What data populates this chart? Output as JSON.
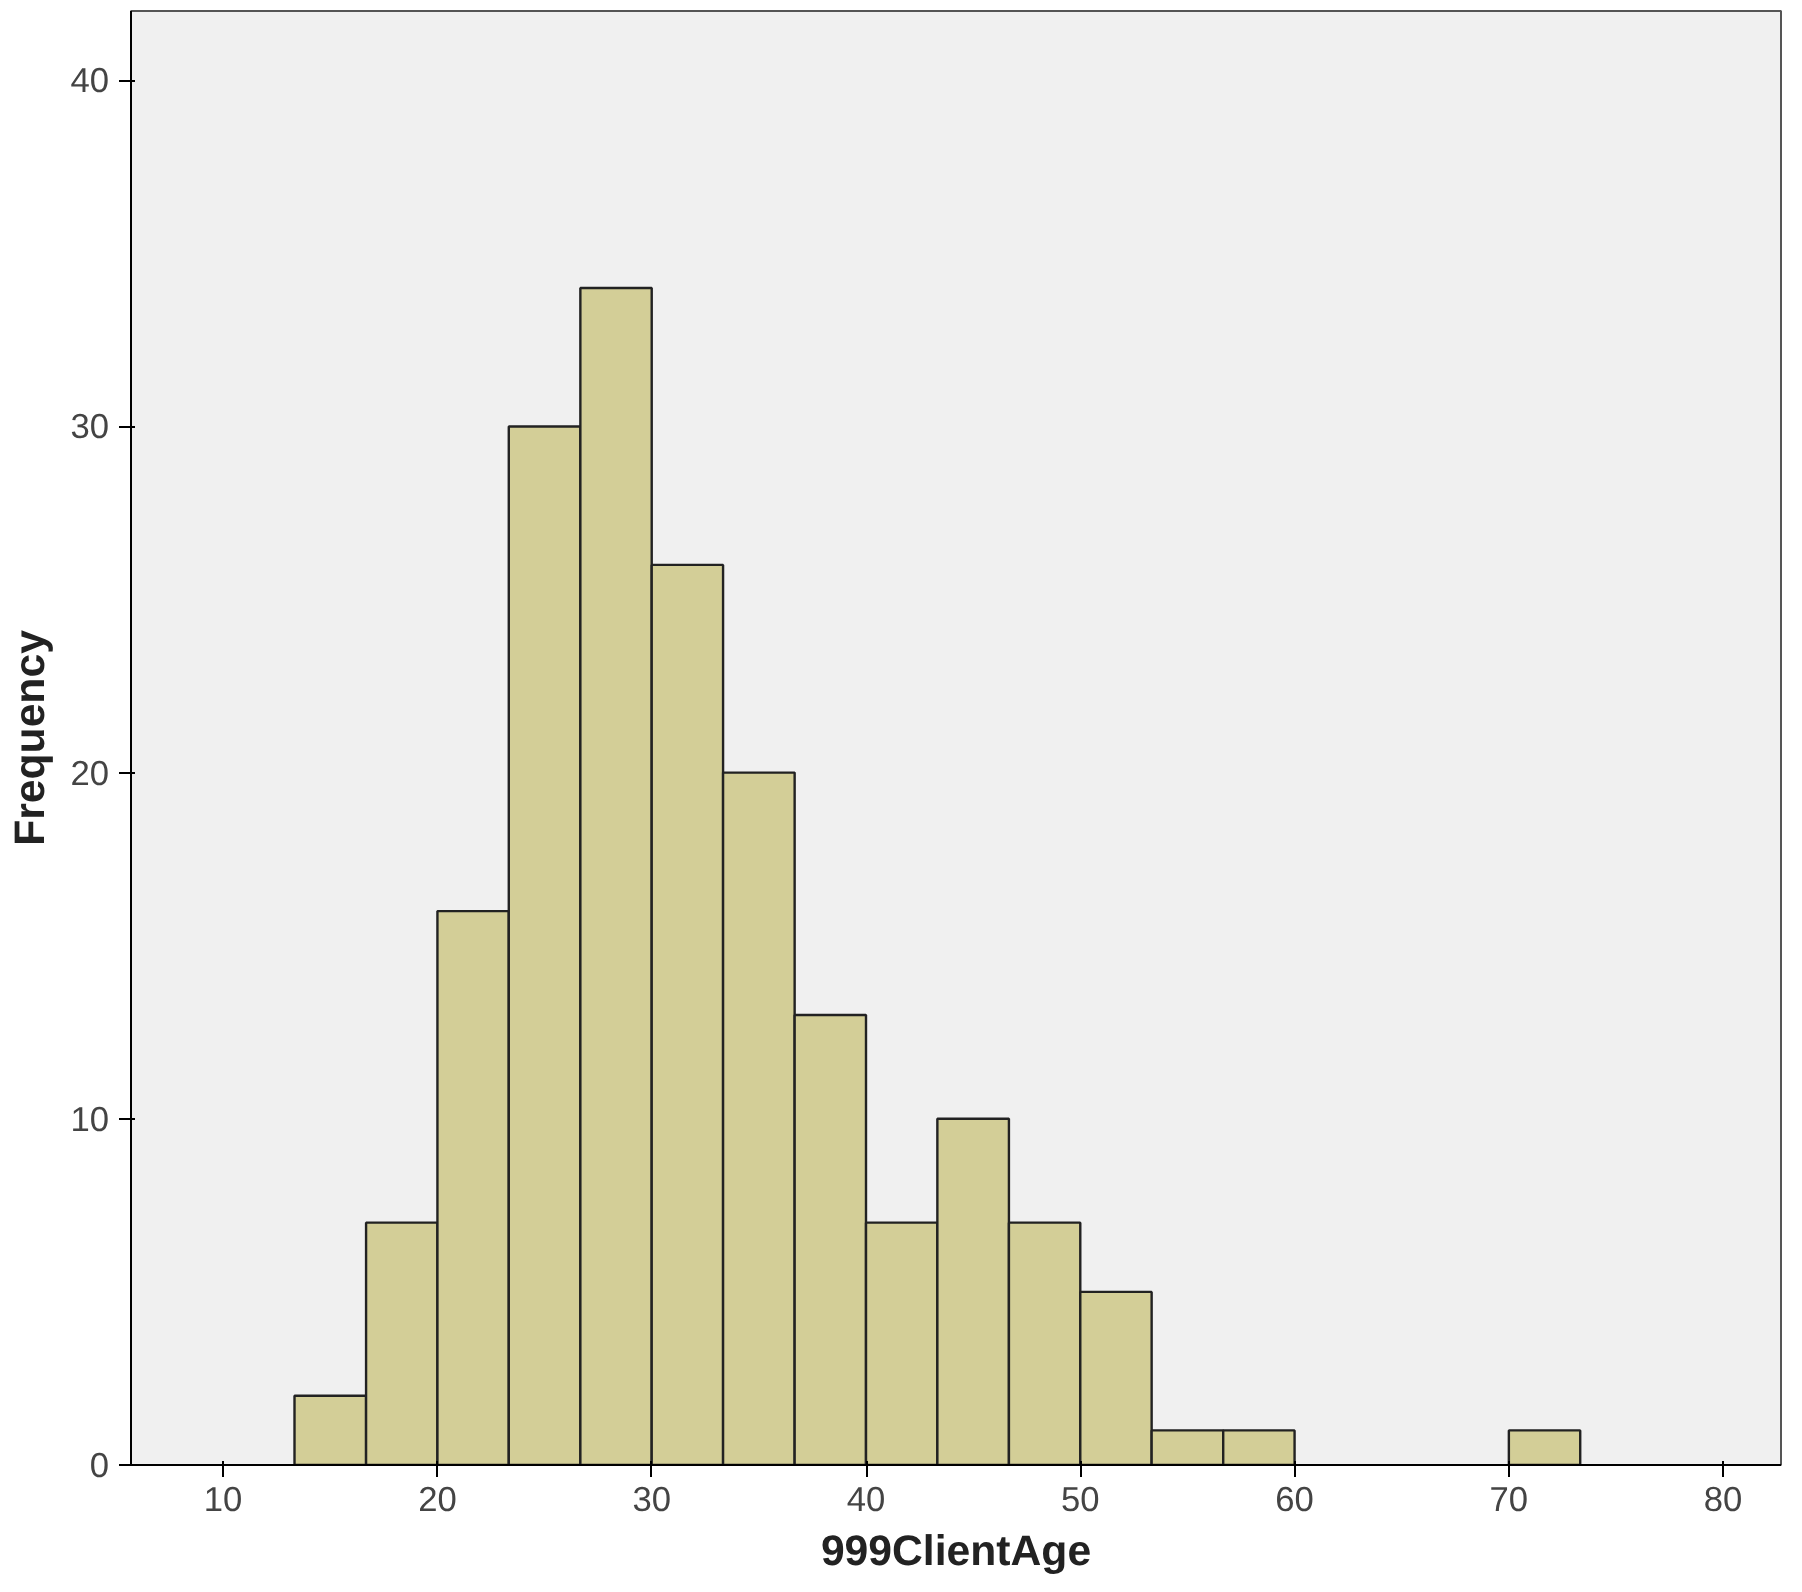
{
  "chart_data": {
    "type": "histogram",
    "xlabel": "999ClientAge",
    "ylabel": "Frequency",
    "bins": [
      13.33,
      16.67,
      20,
      23.33,
      26.67,
      30,
      33.33,
      36.67,
      40,
      43.33,
      46.67,
      50,
      53.33,
      56.67,
      60,
      63.33,
      66.67,
      70,
      73.33
    ],
    "values": [
      2,
      7,
      16,
      30,
      34,
      26,
      20,
      13,
      7,
      10,
      7,
      5,
      1,
      1,
      0,
      0,
      0,
      1
    ],
    "color": "#d3ce97",
    "xlim": [
      5.7,
      82.7
    ],
    "ylim": [
      0,
      42
    ],
    "xticks": [
      10,
      20,
      30,
      40,
      50,
      60,
      70,
      80
    ],
    "yticks": [
      0,
      10,
      20,
      30,
      40
    ],
    "grid": false
  }
}
